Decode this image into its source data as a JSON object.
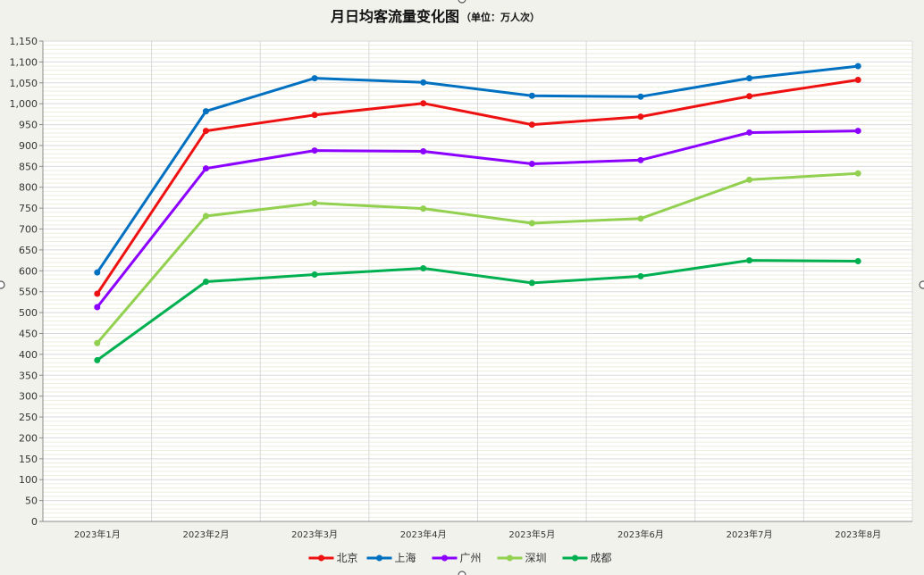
{
  "chart_data": {
    "type": "line",
    "title": "月日均客流量变化图",
    "subtitle": "（单位：万人次）",
    "xlabel": "",
    "ylabel": "",
    "categories": [
      "2023年1月",
      "2023年2月",
      "2023年3月",
      "2023年4月",
      "2023年5月",
      "2023年6月",
      "2023年7月",
      "2023年8月"
    ],
    "y_ticks": [
      "0",
      "50",
      "100",
      "150",
      "200",
      "250",
      "300",
      "350",
      "400",
      "450",
      "500",
      "550",
      "600",
      "650",
      "700",
      "750",
      "800",
      "850",
      "900",
      "950",
      "1,000",
      "1,050",
      "1,100",
      "1,150"
    ],
    "ylim": [
      0,
      1150
    ],
    "grid": true,
    "legend_position": "bottom",
    "series": [
      {
        "name": "北京",
        "color": "#ee1111",
        "values": [
          545,
          935,
          973,
          1001,
          950,
          969,
          1018,
          1057
        ]
      },
      {
        "name": "上海",
        "color": "#0070c0",
        "values": [
          596,
          982,
          1061,
          1051,
          1019,
          1017,
          1061,
          1090
        ]
      },
      {
        "name": "广州",
        "color": "#8b00ff",
        "values": [
          513,
          845,
          888,
          886,
          856,
          865,
          931,
          935
        ]
      },
      {
        "name": "深圳",
        "color": "#92d050",
        "values": [
          427,
          731,
          762,
          749,
          714,
          725,
          818,
          833
        ]
      },
      {
        "name": "成都",
        "color": "#00b050",
        "values": [
          386,
          574,
          591,
          606,
          571,
          587,
          625,
          623
        ]
      }
    ]
  }
}
